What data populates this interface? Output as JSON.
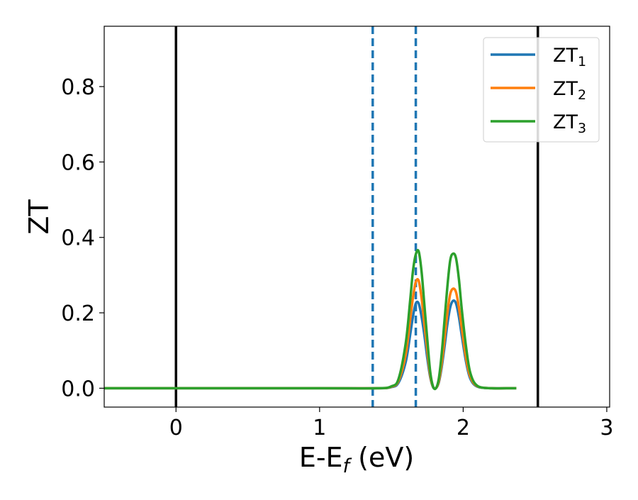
{
  "chart_data": {
    "type": "line",
    "title": "",
    "xlabel": {
      "main": "E-E",
      "sub": "f",
      "suffix": " (eV)"
    },
    "ylabel": "ZT",
    "xlim": [
      -0.5,
      3.02
    ],
    "ylim": [
      -0.05,
      0.96
    ],
    "x_ticks": [
      0,
      1,
      2,
      3
    ],
    "x_tick_labels": [
      "0",
      "1",
      "2",
      "3"
    ],
    "y_ticks": [
      0.0,
      0.2,
      0.4,
      0.6,
      0.8
    ],
    "y_tick_labels": [
      "0.0",
      "0.2",
      "0.4",
      "0.6",
      "0.8"
    ],
    "grid": false,
    "legend_position": "top-right",
    "vertical_lines": [
      {
        "x": 0.0,
        "style": "solid",
        "color": "#000000"
      },
      {
        "x": 2.52,
        "style": "solid",
        "color": "#000000"
      },
      {
        "x": 1.37,
        "style": "dashed",
        "color": "#1f77b4"
      },
      {
        "x": 1.67,
        "style": "dashed",
        "color": "#1f77b4"
      }
    ],
    "series": [
      {
        "name": "ZT",
        "name_sub": "1",
        "color": "#1f77b4",
        "x": [
          -0.5,
          1.0,
          1.4,
          1.5,
          1.55,
          1.6,
          1.63,
          1.65,
          1.67,
          1.69,
          1.71,
          1.73,
          1.75,
          1.77,
          1.79,
          1.81,
          1.83,
          1.85,
          1.87,
          1.89,
          1.91,
          1.93,
          1.95,
          1.97,
          1.99,
          2.02,
          2.05,
          2.1,
          2.2,
          2.3,
          2.37
        ],
        "y": [
          0.0,
          0.0,
          0.0,
          0.003,
          0.015,
          0.07,
          0.14,
          0.19,
          0.225,
          0.225,
          0.19,
          0.14,
          0.08,
          0.03,
          0.003,
          0.0,
          0.015,
          0.055,
          0.11,
          0.17,
          0.215,
          0.232,
          0.225,
          0.19,
          0.14,
          0.07,
          0.025,
          0.004,
          0.0,
          0.0,
          0.0
        ]
      },
      {
        "name": "ZT",
        "name_sub": "2",
        "color": "#ff7f0e",
        "x": [
          -0.5,
          1.0,
          1.4,
          1.5,
          1.55,
          1.6,
          1.63,
          1.65,
          1.67,
          1.69,
          1.71,
          1.73,
          1.75,
          1.77,
          1.79,
          1.81,
          1.83,
          1.85,
          1.87,
          1.89,
          1.91,
          1.93,
          1.95,
          1.97,
          1.99,
          2.02,
          2.05,
          2.1,
          2.2,
          2.3,
          2.37
        ],
        "y": [
          0.0,
          0.0,
          0.0,
          0.004,
          0.02,
          0.09,
          0.18,
          0.24,
          0.282,
          0.285,
          0.24,
          0.17,
          0.1,
          0.035,
          0.004,
          0.0,
          0.018,
          0.065,
          0.13,
          0.2,
          0.25,
          0.264,
          0.255,
          0.215,
          0.16,
          0.08,
          0.03,
          0.005,
          0.0,
          0.0,
          0.0
        ]
      },
      {
        "name": "ZT",
        "name_sub": "3",
        "color": "#2ca02c",
        "x": [
          -0.5,
          1.0,
          1.4,
          1.5,
          1.55,
          1.6,
          1.63,
          1.65,
          1.67,
          1.69,
          1.71,
          1.73,
          1.75,
          1.77,
          1.79,
          1.81,
          1.83,
          1.85,
          1.87,
          1.89,
          1.91,
          1.93,
          1.95,
          1.97,
          1.99,
          2.02,
          2.05,
          2.1,
          2.2,
          2.3,
          2.37
        ],
        "y": [
          0.0,
          0.0,
          0.0,
          0.005,
          0.025,
          0.12,
          0.23,
          0.31,
          0.355,
          0.363,
          0.31,
          0.22,
          0.13,
          0.045,
          0.005,
          0.0,
          0.025,
          0.09,
          0.18,
          0.27,
          0.34,
          0.357,
          0.345,
          0.29,
          0.21,
          0.11,
          0.04,
          0.006,
          0.0,
          0.0,
          0.0
        ]
      }
    ]
  }
}
